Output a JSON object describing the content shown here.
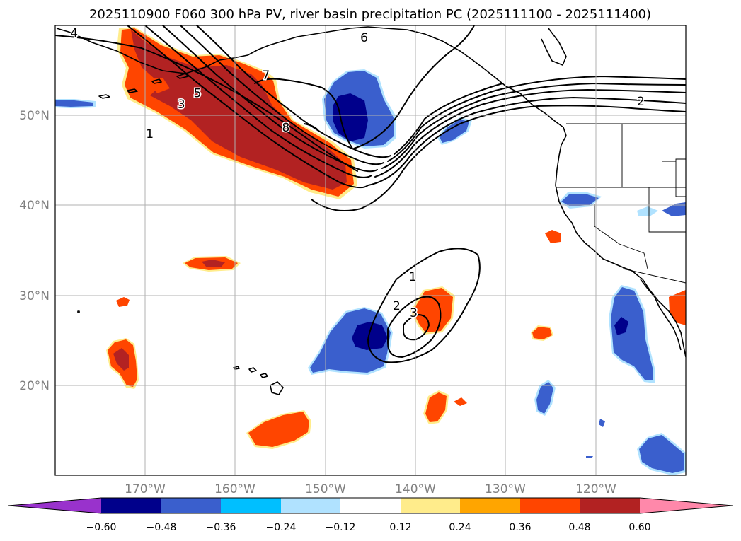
{
  "chart_data": {
    "type": "contour_map",
    "title": "2025110900 F060 300 hPa PV, river basin precipitation PC (2025111100 - 2025111400)",
    "lon_range": [
      -180,
      -110
    ],
    "lat_range": [
      10,
      60
    ],
    "lat_gridlines": [
      20,
      30,
      40,
      50
    ],
    "lon_gridlines": [
      -170,
      -160,
      -150,
      -140,
      -130,
      -120
    ],
    "lat_tick_labels": [
      "20°N",
      "30°N",
      "40°N",
      "50°N"
    ],
    "lon_tick_labels": [
      "170°W",
      "160°W",
      "150°W",
      "140°W",
      "130°W",
      "120°W"
    ],
    "colorbar": {
      "levels": [
        -0.6,
        -0.48,
        -0.36,
        -0.24,
        -0.12,
        0.12,
        0.24,
        0.36,
        0.48,
        0.6
      ],
      "tick_labels": [
        "−0.60",
        "−0.48",
        "−0.36",
        "−0.24",
        "−0.12",
        "0.12",
        "0.24",
        "0.36",
        "0.48",
        "0.60"
      ],
      "colors": [
        "#9932cc",
        "#00008b",
        "#3a5fcd",
        "#00bfff",
        "#b0e2ff",
        "#ffffff",
        "#ffec8b",
        "#ffa500",
        "#ff4500",
        "#b22222",
        "#ff88aa"
      ],
      "extend": "both"
    },
    "pv_contour_labels": [
      {
        "text": "1",
        "lon": -169.5,
        "lat": 47.9
      },
      {
        "text": "3",
        "lon": -166.0,
        "lat": 51.2
      },
      {
        "text": "5",
        "lon": -164.2,
        "lat": 52.4
      },
      {
        "text": "4",
        "lon": -177.9,
        "lat": 59.1
      },
      {
        "text": "7",
        "lon": -156.6,
        "lat": 54.4
      },
      {
        "text": "8",
        "lon": -154.4,
        "lat": 48.6
      },
      {
        "text": "6",
        "lon": -145.7,
        "lat": 58.6
      },
      {
        "text": "2",
        "lon": -115.0,
        "lat": 51.5
      },
      {
        "text": "1",
        "lon": -140.3,
        "lat": 32.0
      },
      {
        "text": "2",
        "lon": -142.1,
        "lat": 28.8
      },
      {
        "text": "3",
        "lon": -140.2,
        "lat": 28.0
      }
    ],
    "precip_blobs": [
      {
        "value": 0.48,
        "lon": -163.7,
        "lat": 46.5
      },
      {
        "value": -0.48,
        "lon": -148.7,
        "lat": 50.3
      },
      {
        "value": -0.36,
        "lon": -138.4,
        "lat": 48.8
      },
      {
        "value": 0.36,
        "lon": -161.6,
        "lat": 33.6
      },
      {
        "value": 0.36,
        "lon": -172.3,
        "lat": 29.6
      },
      {
        "value": 0.48,
        "lon": -172.7,
        "lat": 23.5
      },
      {
        "value": -0.48,
        "lon": -145.4,
        "lat": 25.1
      },
      {
        "value": 0.36,
        "lon": -139.5,
        "lat": 28.0
      },
      {
        "value": 0.36,
        "lon": -153.4,
        "lat": 14.9
      },
      {
        "value": 0.36,
        "lon": -140.2,
        "lat": 15.6
      },
      {
        "value": 0.36,
        "lon": -135.1,
        "lat": 17.9
      },
      {
        "value": 0.36,
        "lon": -127.6,
        "lat": 25.9
      },
      {
        "value": 0.36,
        "lon": -124.3,
        "lat": 36.5
      },
      {
        "value": -0.36,
        "lon": -126.0,
        "lat": 18.5
      },
      {
        "value": -0.36,
        "lon": -122.3,
        "lat": 40.5
      },
      {
        "value": -0.48,
        "lon": -117.4,
        "lat": 26.5
      },
      {
        "value": 0.36,
        "lon": -110.8,
        "lat": 28.9
      },
      {
        "value": -0.36,
        "lon": -110.8,
        "lat": 39.5
      },
      {
        "value": -0.36,
        "lon": -114.0,
        "lat": 12.2
      },
      {
        "value": -0.36,
        "lon": -179.0,
        "lat": 51.3
      }
    ]
  }
}
